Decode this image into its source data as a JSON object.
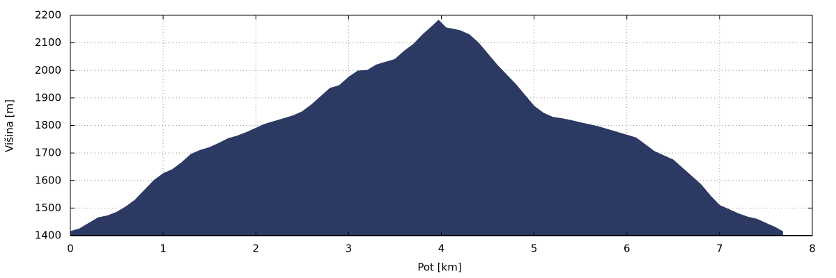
{
  "chart_data": {
    "type": "area",
    "x_label": "Pot [km]",
    "y_label": "Višina [m]",
    "x": [
      0,
      0.1,
      0.2,
      0.3,
      0.4,
      0.5,
      0.6,
      0.7,
      0.8,
      0.9,
      1.0,
      1.1,
      1.2,
      1.3,
      1.4,
      1.5,
      1.6,
      1.7,
      1.8,
      1.9,
      2.0,
      2.1,
      2.2,
      2.3,
      2.4,
      2.5,
      2.6,
      2.7,
      2.8,
      2.9,
      3.0,
      3.1,
      3.2,
      3.3,
      3.4,
      3.5,
      3.6,
      3.7,
      3.8,
      3.9,
      3.97,
      4.05,
      4.2,
      4.3,
      4.4,
      4.5,
      4.6,
      4.7,
      4.8,
      4.9,
      5.0,
      5.1,
      5.2,
      5.3,
      5.4,
      5.5,
      5.6,
      5.7,
      5.8,
      5.9,
      6.0,
      6.1,
      6.2,
      6.3,
      6.4,
      6.5,
      6.6,
      6.7,
      6.8,
      6.9,
      7.0,
      7.1,
      7.2,
      7.3,
      7.4,
      7.5,
      7.6,
      7.68
    ],
    "values": [
      1415,
      1425,
      1445,
      1465,
      1472,
      1485,
      1505,
      1530,
      1565,
      1600,
      1625,
      1640,
      1665,
      1695,
      1710,
      1720,
      1735,
      1752,
      1762,
      1775,
      1790,
      1805,
      1815,
      1825,
      1835,
      1850,
      1875,
      1905,
      1935,
      1945,
      1975,
      1998,
      2000,
      2020,
      2030,
      2040,
      2070,
      2095,
      2130,
      2160,
      2182,
      2155,
      2145,
      2130,
      2100,
      2060,
      2020,
      1985,
      1950,
      1910,
      1870,
      1845,
      1830,
      1825,
      1818,
      1810,
      1803,
      1795,
      1785,
      1775,
      1765,
      1755,
      1730,
      1705,
      1690,
      1675,
      1645,
      1615,
      1585,
      1545,
      1510,
      1495,
      1480,
      1468,
      1460,
      1445,
      1430,
      1415
    ],
    "color": "#2c3a63",
    "xlim": [
      0,
      8
    ],
    "ylim": [
      1400,
      2200
    ],
    "xticks": [
      0,
      1,
      2,
      3,
      4,
      5,
      6,
      7,
      8
    ],
    "yticks": [
      1400,
      1500,
      1600,
      1700,
      1800,
      1900,
      2000,
      2100,
      2200
    ],
    "grid": true
  }
}
